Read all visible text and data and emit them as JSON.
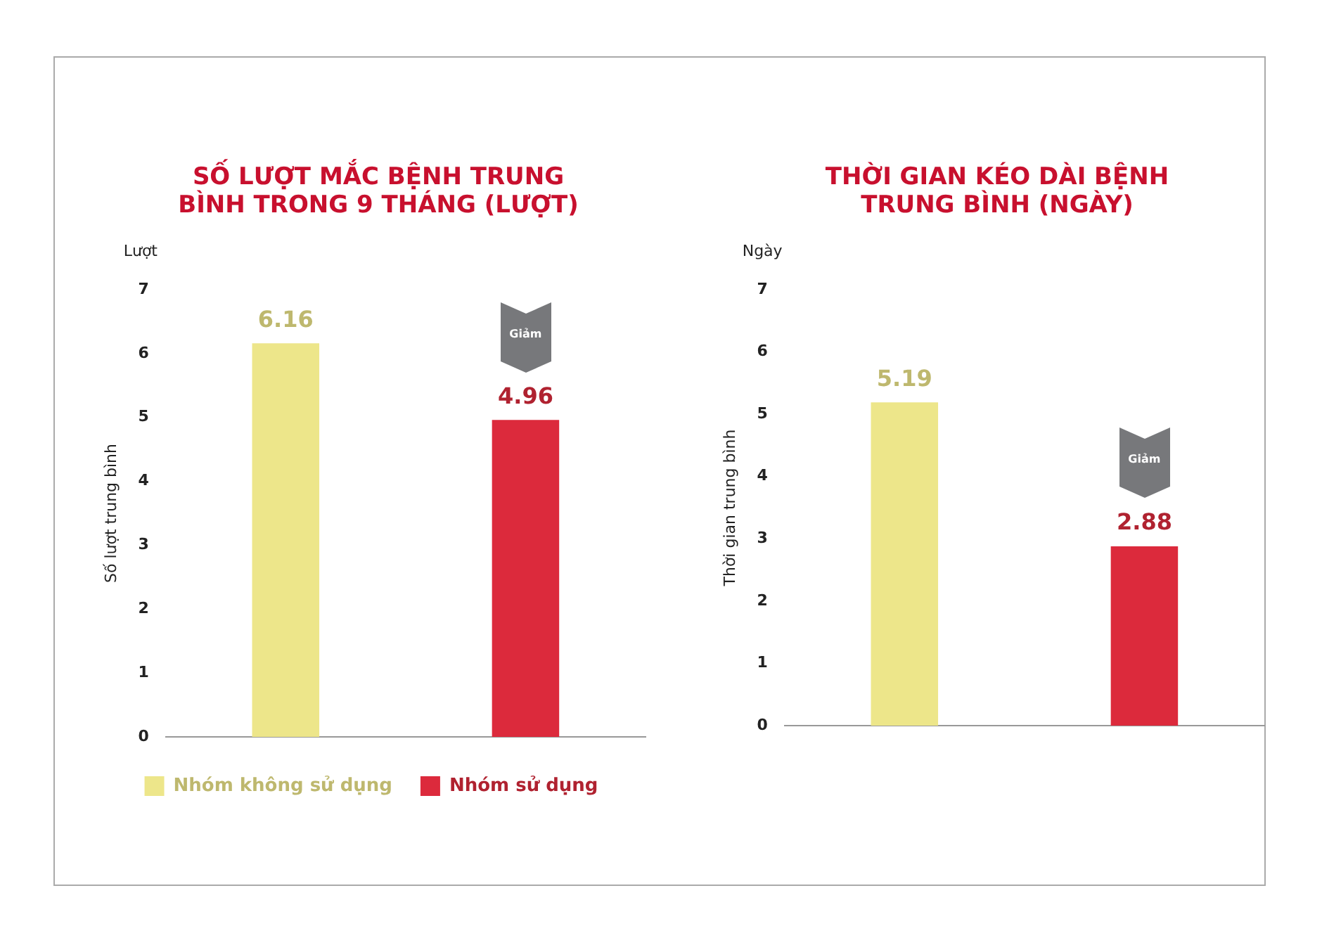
{
  "chart_data": [
    {
      "type": "bar",
      "title": "SỐ LƯỢT MẮC BỆNH TRUNG BÌNH TRONG 9 THÁNG (LƯỢT)",
      "ylabel": "Số lượt trung bình",
      "annotations": [
        "Lượt",
        "Giảm"
      ],
      "categories": [
        null,
        null
      ],
      "series": [
        {
          "name": "Nhóm không sử dụng",
          "color": "#ede68a",
          "values": [
            6.16,
            null
          ]
        },
        {
          "name": "Nhóm sử dụng",
          "color": "#dc2a3c",
          "values": [
            null,
            4.96
          ]
        }
      ],
      "ylim": [
        0,
        7
      ],
      "yticks": [
        0,
        1,
        2,
        3,
        4,
        5,
        6,
        7
      ],
      "data_labels": true,
      "legend": "bottom"
    },
    {
      "type": "bar",
      "title": "THỜI GIAN KÉO DÀI BỆNH TRUNG BÌNH (NGÀY)",
      "ylabel": "Thời gian trung bình",
      "annotations": [
        "Ngày",
        "Giảm"
      ],
      "categories": [
        null,
        null
      ],
      "series": [
        {
          "color": "#ede68a",
          "values": [
            5.19,
            null
          ]
        },
        {
          "color": "#dc2a3c",
          "values": [
            null,
            2.88
          ]
        }
      ],
      "ylim": [
        0,
        7
      ],
      "yticks": [
        0,
        1,
        2,
        3,
        4,
        5,
        6,
        7
      ],
      "data_labels": true
    }
  ]
}
